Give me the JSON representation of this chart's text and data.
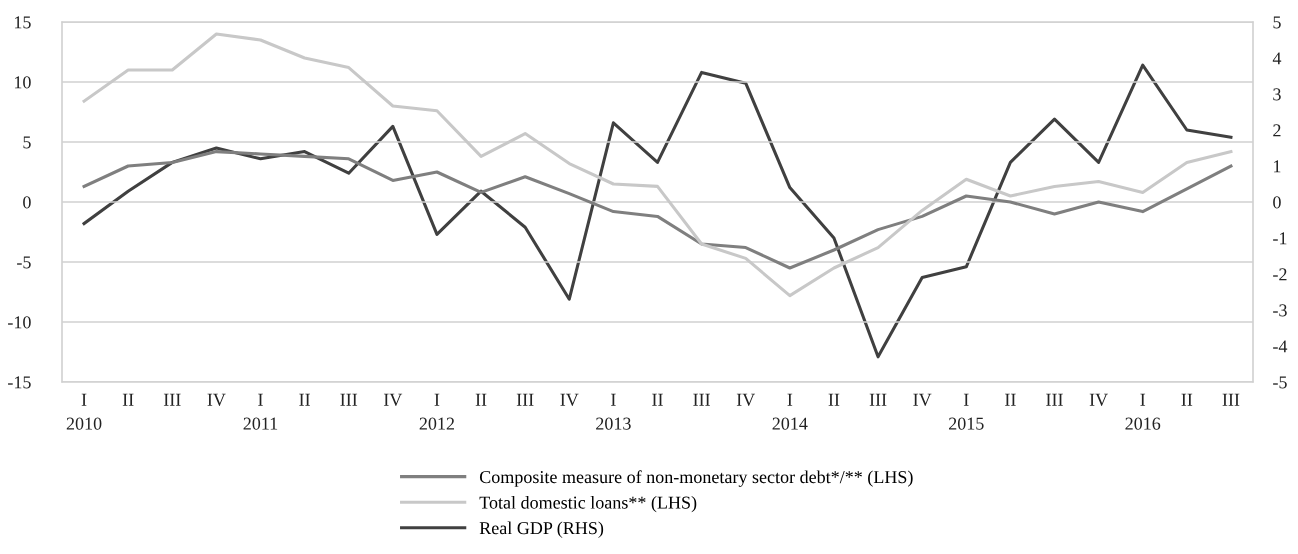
{
  "chart_data": {
    "type": "line",
    "categories": [
      "I\n2010",
      "II",
      "III",
      "IV",
      "I\n2011",
      "II",
      "III",
      "IV",
      "I\n2012",
      "II",
      "III",
      "IV",
      "I\n2013",
      "II",
      "III",
      "IV",
      "I\n2014",
      "II",
      "III",
      "IV",
      "I\n2015",
      "II",
      "III",
      "IV",
      "I\n2016",
      "II",
      "III"
    ],
    "series": [
      {
        "name": "Composite measure of non-monetary sector debt*/** (LHS)",
        "color": "#7f7f7f",
        "values": [
          1.3,
          3.0,
          3.3,
          4.2,
          4.0,
          3.8,
          3.6,
          1.8,
          2.5,
          0.8,
          2.1,
          0.7,
          -0.8,
          -1.2,
          -3.5,
          -3.8,
          -5.5,
          -4.0,
          -2.3,
          -1.2,
          0.5,
          0.0,
          -1.0,
          0.0,
          -0.8,
          1.1,
          3.0
        ]
      },
      {
        "name": "Total domestic loans** (LHS)",
        "color": "#c8c8c8",
        "values": [
          8.4,
          11,
          11,
          14,
          13.5,
          12,
          11.2,
          8,
          7.6,
          3.8,
          5.7,
          3.2,
          1.5,
          1.3,
          -3.5,
          -4.7,
          -7.8,
          -5.5,
          -3.8,
          -0.7,
          1.9,
          0.5,
          1.3,
          1.7,
          0.8,
          3.3,
          4.2
        ]
      },
      {
        "name": "Real GDP (RHS)",
        "color": "#404040",
        "axis": "y2",
        "values": [
          -0.6,
          0.3,
          1.1,
          1.5,
          1.2,
          1.4,
          0.8,
          2.1,
          -0.9,
          0.3,
          -0.7,
          -2.7,
          2.2,
          1.1,
          3.6,
          3.3,
          0.4,
          -1.0,
          -4.3,
          -2.1,
          -1.8,
          1.1,
          2.3,
          1.1,
          3.8,
          2.0,
          1.8
        ]
      }
    ],
    "ylim": [
      -15,
      15
    ],
    "yticks": [
      -15,
      -10,
      -5,
      0,
      5,
      10,
      15
    ],
    "y2lim": [
      -5,
      5
    ],
    "y2ticks": [
      -5,
      -4,
      -3,
      -2,
      -1,
      0,
      1,
      2,
      3,
      4,
      5
    ],
    "grid": "y",
    "legend": "bottom",
    "marker": "none",
    "line_style": "solid"
  }
}
